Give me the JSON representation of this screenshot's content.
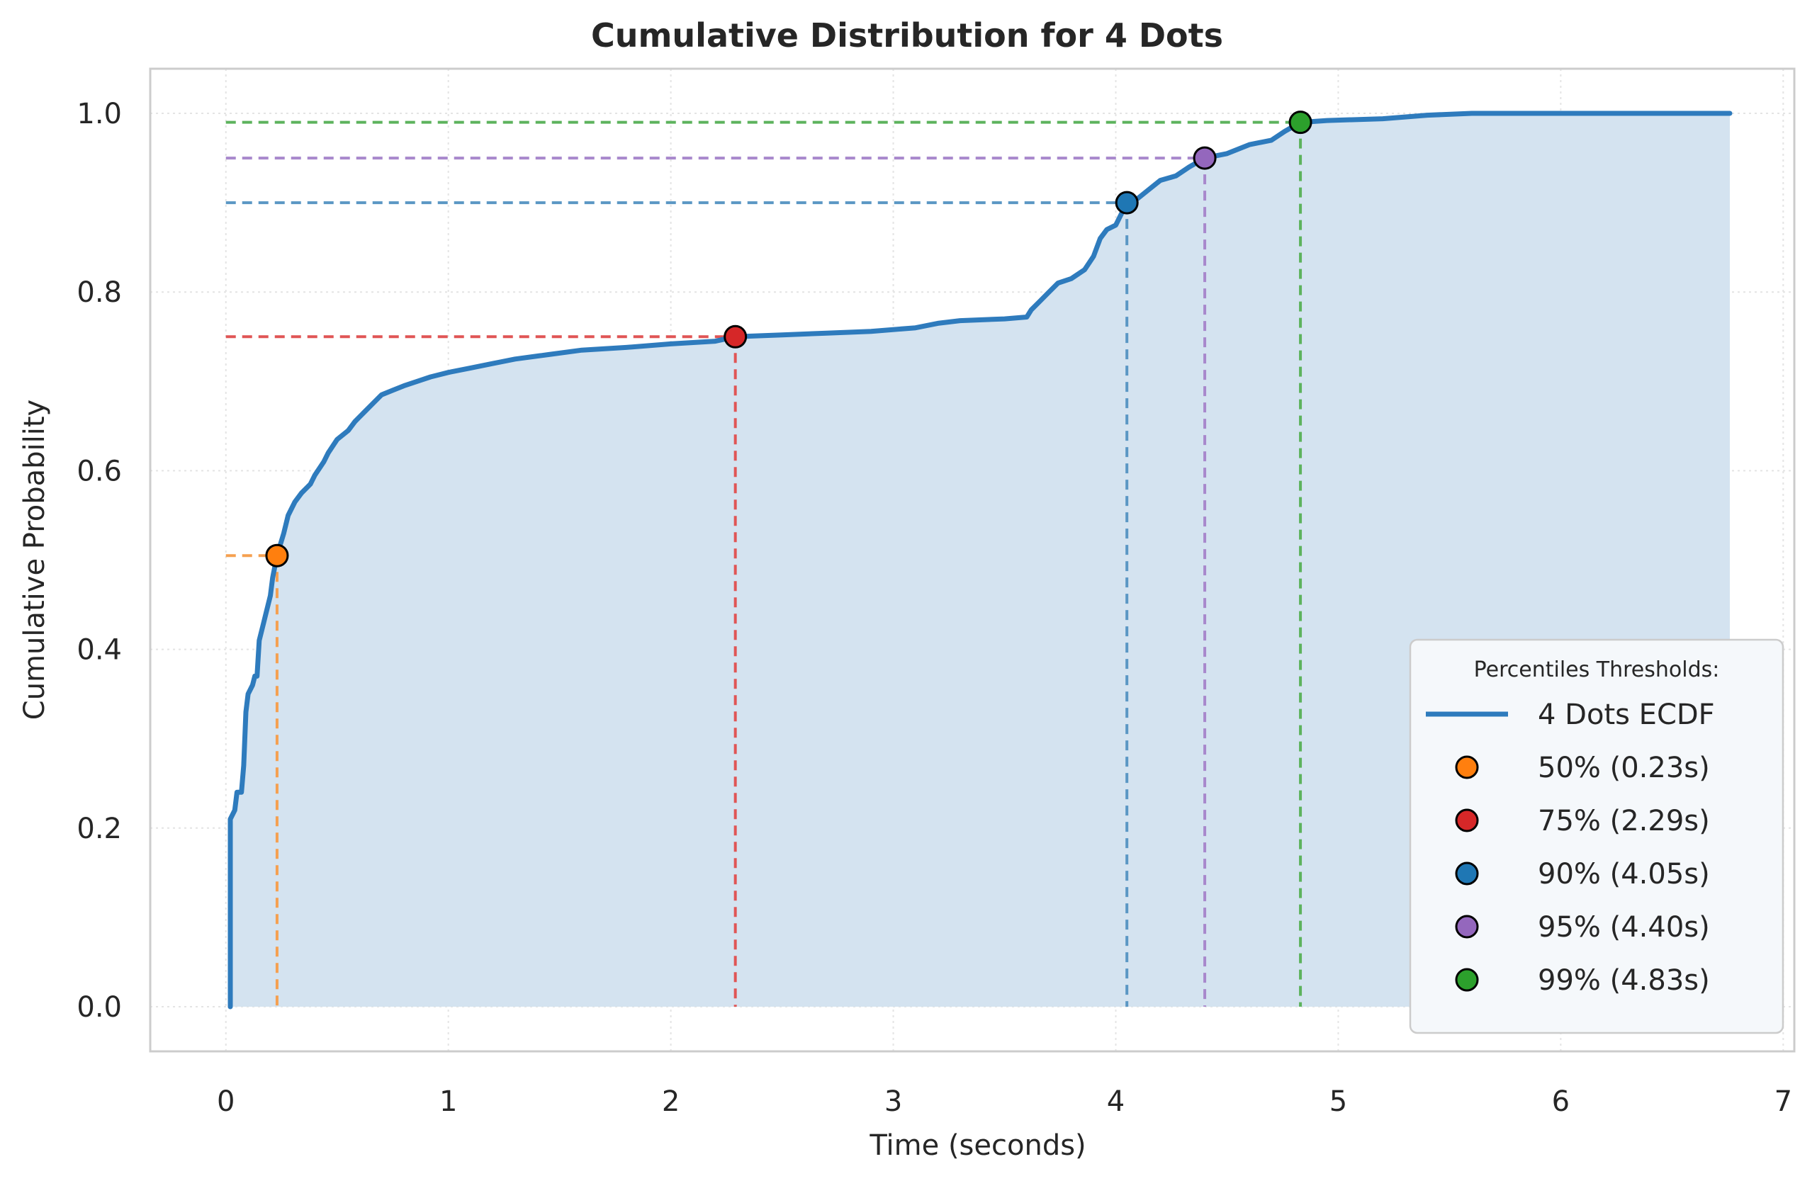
{
  "chart_data": {
    "type": "line",
    "title": "Cumulative Distribution for 4 Dots",
    "xlabel": "Time (seconds)",
    "ylabel": "Cumulative Probability",
    "xlim": [
      -0.34,
      7.05
    ],
    "ylim": [
      -0.05,
      1.05
    ],
    "x_ticks": [
      0,
      1,
      2,
      3,
      4,
      5,
      6,
      7
    ],
    "y_ticks": [
      0.0,
      0.2,
      0.4,
      0.6,
      0.8,
      1.0
    ],
    "x_tick_labels": [
      "0",
      "1",
      "2",
      "3",
      "4",
      "5",
      "6",
      "7"
    ],
    "y_tick_labels": [
      "0.0",
      "0.2",
      "0.4",
      "0.6",
      "0.8",
      "1.0"
    ],
    "grid": true,
    "legend_position": "lower-right",
    "legend_title": "Percentiles Thresholds:",
    "series": [
      {
        "name": "4 Dots ECDF",
        "color": "#2e7bbd",
        "fill_color": "#d4e3f0",
        "points": [
          [
            0.02,
            0.0
          ],
          [
            0.02,
            0.21
          ],
          [
            0.04,
            0.22
          ],
          [
            0.05,
            0.24
          ],
          [
            0.07,
            0.24
          ],
          [
            0.08,
            0.27
          ],
          [
            0.09,
            0.33
          ],
          [
            0.1,
            0.35
          ],
          [
            0.12,
            0.36
          ],
          [
            0.13,
            0.37
          ],
          [
            0.14,
            0.37
          ],
          [
            0.15,
            0.41
          ],
          [
            0.17,
            0.43
          ],
          [
            0.18,
            0.44
          ],
          [
            0.2,
            0.46
          ],
          [
            0.21,
            0.48
          ],
          [
            0.23,
            0.505
          ],
          [
            0.26,
            0.53
          ],
          [
            0.28,
            0.55
          ],
          [
            0.31,
            0.565
          ],
          [
            0.34,
            0.575
          ],
          [
            0.38,
            0.585
          ],
          [
            0.4,
            0.595
          ],
          [
            0.44,
            0.61
          ],
          [
            0.46,
            0.62
          ],
          [
            0.5,
            0.635
          ],
          [
            0.55,
            0.645
          ],
          [
            0.58,
            0.655
          ],
          [
            0.62,
            0.665
          ],
          [
            0.66,
            0.675
          ],
          [
            0.7,
            0.685
          ],
          [
            0.75,
            0.69
          ],
          [
            0.8,
            0.695
          ],
          [
            0.86,
            0.7
          ],
          [
            0.92,
            0.705
          ],
          [
            1.0,
            0.71
          ],
          [
            1.1,
            0.715
          ],
          [
            1.2,
            0.72
          ],
          [
            1.3,
            0.725
          ],
          [
            1.45,
            0.73
          ],
          [
            1.6,
            0.735
          ],
          [
            1.8,
            0.738
          ],
          [
            2.0,
            0.742
          ],
          [
            2.2,
            0.745
          ],
          [
            2.29,
            0.75
          ],
          [
            2.5,
            0.752
          ],
          [
            2.7,
            0.754
          ],
          [
            2.9,
            0.756
          ],
          [
            3.1,
            0.76
          ],
          [
            3.2,
            0.765
          ],
          [
            3.3,
            0.768
          ],
          [
            3.5,
            0.77
          ],
          [
            3.6,
            0.772
          ],
          [
            3.62,
            0.78
          ],
          [
            3.66,
            0.79
          ],
          [
            3.7,
            0.8
          ],
          [
            3.74,
            0.81
          ],
          [
            3.8,
            0.815
          ],
          [
            3.86,
            0.825
          ],
          [
            3.9,
            0.84
          ],
          [
            3.93,
            0.86
          ],
          [
            3.96,
            0.87
          ],
          [
            4.0,
            0.875
          ],
          [
            4.05,
            0.9
          ],
          [
            4.1,
            0.905
          ],
          [
            4.15,
            0.915
          ],
          [
            4.2,
            0.925
          ],
          [
            4.27,
            0.93
          ],
          [
            4.33,
            0.94
          ],
          [
            4.4,
            0.95
          ],
          [
            4.5,
            0.955
          ],
          [
            4.6,
            0.965
          ],
          [
            4.7,
            0.97
          ],
          [
            4.76,
            0.98
          ],
          [
            4.83,
            0.99
          ],
          [
            4.95,
            0.992
          ],
          [
            5.2,
            0.994
          ],
          [
            5.4,
            0.998
          ],
          [
            5.6,
            1.0
          ],
          [
            6.76,
            1.0
          ]
        ]
      }
    ],
    "percentiles": [
      {
        "label": "50% (0.23s)",
        "x": 0.23,
        "y": 0.505,
        "color": "#ff7f0e",
        "line_color": "#f5a050"
      },
      {
        "label": "75% (2.29s)",
        "x": 2.29,
        "y": 0.75,
        "color": "#d62728",
        "line_color": "#e05555"
      },
      {
        "label": "90% (4.05s)",
        "x": 4.05,
        "y": 0.9,
        "color": "#1f77b4",
        "line_color": "#5b97c4"
      },
      {
        "label": "95% (4.40s)",
        "x": 4.4,
        "y": 0.95,
        "color": "#9467bd",
        "line_color": "#a888cc"
      },
      {
        "label": "99% (4.83s)",
        "x": 4.83,
        "y": 0.99,
        "color": "#2ca02c",
        "line_color": "#5db35d"
      }
    ],
    "hline_start_x": 0.0
  }
}
